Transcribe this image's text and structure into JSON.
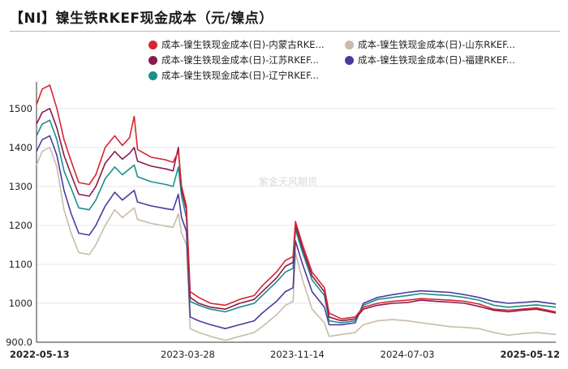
{
  "header": {
    "title": "【NI】镍生铁RKEF现金成本（元/镍点）"
  },
  "chart_data": {
    "type": "line",
    "title": "【NI】镍生铁RKEF现金成本（元/镍点）",
    "watermark": "紫金天风期货",
    "ylim": [
      900,
      1560
    ],
    "yticks": [
      "1500",
      "1400",
      "1300",
      "1200",
      "1100",
      "1000",
      "900.0"
    ],
    "x_ticks": [
      "2022-05-13",
      "2023-03-28",
      "2023-11-14",
      "2024-07-03",
      "2025-05-12"
    ],
    "grid": "horizontal",
    "legend_position": "top",
    "series": [
      {
        "name": "成本-镍生铁现金成本(日)-内蒙古RKE...",
        "color": "#d7262e",
        "points": [
          [
            "2022-05-13",
            1510
          ],
          [
            "2022-05-25",
            1550
          ],
          [
            "2022-06-10",
            1560
          ],
          [
            "2022-06-25",
            1500
          ],
          [
            "2022-07-10",
            1420
          ],
          [
            "2022-07-25",
            1365
          ],
          [
            "2022-08-10",
            1310
          ],
          [
            "2022-09-01",
            1305
          ],
          [
            "2022-09-15",
            1330
          ],
          [
            "2022-10-05",
            1400
          ],
          [
            "2022-10-25",
            1430
          ],
          [
            "2022-11-10",
            1405
          ],
          [
            "2022-11-25",
            1425
          ],
          [
            "2022-12-05",
            1480
          ],
          [
            "2022-12-12",
            1395
          ],
          [
            "2023-01-10",
            1375
          ],
          [
            "2023-02-10",
            1368
          ],
          [
            "2023-02-25",
            1362
          ],
          [
            "2023-03-08",
            1390
          ],
          [
            "2023-03-15",
            1300
          ],
          [
            "2023-03-25",
            1250
          ],
          [
            "2023-04-02",
            1030
          ],
          [
            "2023-04-20",
            1015
          ],
          [
            "2023-05-15",
            1000
          ],
          [
            "2023-06-15",
            995
          ],
          [
            "2023-07-15",
            1010
          ],
          [
            "2023-08-15",
            1020
          ],
          [
            "2023-09-01",
            1045
          ],
          [
            "2023-10-01",
            1080
          ],
          [
            "2023-10-20",
            1110
          ],
          [
            "2023-11-05",
            1120
          ],
          [
            "2023-11-10",
            1210
          ],
          [
            "2023-11-25",
            1150
          ],
          [
            "2023-12-15",
            1080
          ],
          [
            "2024-01-10",
            1040
          ],
          [
            "2024-01-20",
            975
          ],
          [
            "2024-02-15",
            960
          ],
          [
            "2024-03-15",
            965
          ],
          [
            "2024-04-01",
            990
          ],
          [
            "2024-05-01",
            1000
          ],
          [
            "2024-06-01",
            1005
          ],
          [
            "2024-07-03",
            1008
          ],
          [
            "2024-08-01",
            1012
          ],
          [
            "2024-09-01",
            1010
          ],
          [
            "2024-10-01",
            1008
          ],
          [
            "2024-11-01",
            1005
          ],
          [
            "2024-12-01",
            998
          ],
          [
            "2025-01-01",
            985
          ],
          [
            "2025-02-01",
            982
          ],
          [
            "2025-03-01",
            985
          ],
          [
            "2025-04-01",
            988
          ],
          [
            "2025-05-12",
            978
          ]
        ]
      },
      {
        "name": "成本-镍生铁现金成本(日)-江苏RKEF...",
        "color": "#8b1a4d",
        "points": [
          [
            "2022-05-13",
            1460
          ],
          [
            "2022-05-25",
            1490
          ],
          [
            "2022-06-10",
            1500
          ],
          [
            "2022-06-25",
            1450
          ],
          [
            "2022-07-10",
            1380
          ],
          [
            "2022-07-25",
            1330
          ],
          [
            "2022-08-10",
            1280
          ],
          [
            "2022-09-01",
            1275
          ],
          [
            "2022-09-15",
            1300
          ],
          [
            "2022-10-05",
            1360
          ],
          [
            "2022-10-25",
            1390
          ],
          [
            "2022-11-10",
            1370
          ],
          [
            "2022-11-25",
            1385
          ],
          [
            "2022-12-05",
            1400
          ],
          [
            "2022-12-12",
            1365
          ],
          [
            "2023-01-10",
            1352
          ],
          [
            "2023-02-10",
            1345
          ],
          [
            "2023-02-25",
            1340
          ],
          [
            "2023-03-08",
            1400
          ],
          [
            "2023-03-15",
            1290
          ],
          [
            "2023-03-25",
            1240
          ],
          [
            "2023-04-02",
            1015
          ],
          [
            "2023-04-20",
            1000
          ],
          [
            "2023-05-15",
            990
          ],
          [
            "2023-06-15",
            985
          ],
          [
            "2023-07-15",
            1000
          ],
          [
            "2023-08-15",
            1010
          ],
          [
            "2023-09-01",
            1030
          ],
          [
            "2023-10-01",
            1065
          ],
          [
            "2023-10-20",
            1095
          ],
          [
            "2023-11-05",
            1105
          ],
          [
            "2023-11-10",
            1200
          ],
          [
            "2023-11-25",
            1140
          ],
          [
            "2023-12-15",
            1070
          ],
          [
            "2024-01-10",
            1030
          ],
          [
            "2024-01-20",
            965
          ],
          [
            "2024-02-15",
            955
          ],
          [
            "2024-03-15",
            960
          ],
          [
            "2024-04-01",
            985
          ],
          [
            "2024-05-01",
            995
          ],
          [
            "2024-06-01",
            1000
          ],
          [
            "2024-07-03",
            1002
          ],
          [
            "2024-08-01",
            1008
          ],
          [
            "2024-09-01",
            1005
          ],
          [
            "2024-10-01",
            1003
          ],
          [
            "2024-11-01",
            1000
          ],
          [
            "2024-12-01",
            992
          ],
          [
            "2025-01-01",
            982
          ],
          [
            "2025-02-01",
            978
          ],
          [
            "2025-03-01",
            982
          ],
          [
            "2025-04-01",
            985
          ],
          [
            "2025-05-12",
            975
          ]
        ]
      },
      {
        "name": "成本-镍生铁现金成本(日)-辽宁RKEF...",
        "color": "#1a8f8c",
        "points": [
          [
            "2022-05-13",
            1430
          ],
          [
            "2022-05-25",
            1460
          ],
          [
            "2022-06-10",
            1470
          ],
          [
            "2022-06-25",
            1420
          ],
          [
            "2022-07-10",
            1340
          ],
          [
            "2022-07-25",
            1295
          ],
          [
            "2022-08-10",
            1245
          ],
          [
            "2022-09-01",
            1240
          ],
          [
            "2022-09-15",
            1265
          ],
          [
            "2022-10-05",
            1320
          ],
          [
            "2022-10-25",
            1350
          ],
          [
            "2022-11-10",
            1330
          ],
          [
            "2022-11-25",
            1345
          ],
          [
            "2022-12-05",
            1355
          ],
          [
            "2022-12-12",
            1325
          ],
          [
            "2023-01-10",
            1312
          ],
          [
            "2023-02-10",
            1305
          ],
          [
            "2023-02-25",
            1300
          ],
          [
            "2023-03-08",
            1350
          ],
          [
            "2023-03-15",
            1275
          ],
          [
            "2023-03-25",
            1220
          ],
          [
            "2023-04-02",
            1005
          ],
          [
            "2023-04-20",
            995
          ],
          [
            "2023-05-15",
            985
          ],
          [
            "2023-06-15",
            978
          ],
          [
            "2023-07-15",
            990
          ],
          [
            "2023-08-15",
            1000
          ],
          [
            "2023-09-01",
            1020
          ],
          [
            "2023-10-01",
            1055
          ],
          [
            "2023-10-20",
            1080
          ],
          [
            "2023-11-05",
            1090
          ],
          [
            "2023-11-10",
            1190
          ],
          [
            "2023-11-25",
            1130
          ],
          [
            "2023-12-15",
            1060
          ],
          [
            "2024-01-10",
            1020
          ],
          [
            "2024-01-20",
            955
          ],
          [
            "2024-02-15",
            950
          ],
          [
            "2024-03-15",
            955
          ],
          [
            "2024-04-01",
            995
          ],
          [
            "2024-05-01",
            1010
          ],
          [
            "2024-06-01",
            1015
          ],
          [
            "2024-07-03",
            1020
          ],
          [
            "2024-08-01",
            1025
          ],
          [
            "2024-09-01",
            1022
          ],
          [
            "2024-10-01",
            1020
          ],
          [
            "2024-11-01",
            1015
          ],
          [
            "2024-12-01",
            1008
          ],
          [
            "2025-01-01",
            995
          ],
          [
            "2025-02-01",
            990
          ],
          [
            "2025-03-01",
            993
          ],
          [
            "2025-04-01",
            996
          ],
          [
            "2025-05-12",
            990
          ]
        ]
      },
      {
        "name": "成本-镍生铁现金成本(日)-山东RKEF...",
        "color": "#c8bba8",
        "points": [
          [
            "2022-05-13",
            1355
          ],
          [
            "2022-05-25",
            1390
          ],
          [
            "2022-06-10",
            1400
          ],
          [
            "2022-06-25",
            1350
          ],
          [
            "2022-07-10",
            1240
          ],
          [
            "2022-07-25",
            1180
          ],
          [
            "2022-08-10",
            1130
          ],
          [
            "2022-09-01",
            1125
          ],
          [
            "2022-09-15",
            1150
          ],
          [
            "2022-10-05",
            1200
          ],
          [
            "2022-10-25",
            1240
          ],
          [
            "2022-11-10",
            1220
          ],
          [
            "2022-11-25",
            1235
          ],
          [
            "2022-12-05",
            1245
          ],
          [
            "2022-12-12",
            1215
          ],
          [
            "2023-01-10",
            1205
          ],
          [
            "2023-02-10",
            1198
          ],
          [
            "2023-02-25",
            1195
          ],
          [
            "2023-03-08",
            1230
          ],
          [
            "2023-03-15",
            1180
          ],
          [
            "2023-03-25",
            1150
          ],
          [
            "2023-04-02",
            935
          ],
          [
            "2023-04-20",
            925
          ],
          [
            "2023-05-15",
            915
          ],
          [
            "2023-06-15",
            905
          ],
          [
            "2023-07-15",
            915
          ],
          [
            "2023-08-15",
            925
          ],
          [
            "2023-09-01",
            940
          ],
          [
            "2023-10-01",
            970
          ],
          [
            "2023-10-20",
            995
          ],
          [
            "2023-11-05",
            1005
          ],
          [
            "2023-11-10",
            1130
          ],
          [
            "2023-11-25",
            1060
          ],
          [
            "2023-12-15",
            985
          ],
          [
            "2024-01-10",
            950
          ],
          [
            "2024-01-20",
            915
          ],
          [
            "2024-02-15",
            920
          ],
          [
            "2024-03-15",
            925
          ],
          [
            "2024-04-01",
            945
          ],
          [
            "2024-05-01",
            955
          ],
          [
            "2024-06-01",
            958
          ],
          [
            "2024-07-03",
            955
          ],
          [
            "2024-08-01",
            950
          ],
          [
            "2024-09-01",
            945
          ],
          [
            "2024-10-01",
            940
          ],
          [
            "2024-11-01",
            938
          ],
          [
            "2024-12-01",
            935
          ],
          [
            "2025-01-01",
            925
          ],
          [
            "2025-02-01",
            918
          ],
          [
            "2025-03-01",
            922
          ],
          [
            "2025-04-01",
            925
          ],
          [
            "2025-05-12",
            920
          ]
        ]
      },
      {
        "name": "成本-镍生铁现金成本(日)-福建RKEF...",
        "color": "#4b3a9e",
        "points": [
          [
            "2022-05-13",
            1390
          ],
          [
            "2022-05-25",
            1420
          ],
          [
            "2022-06-10",
            1430
          ],
          [
            "2022-06-25",
            1380
          ],
          [
            "2022-07-10",
            1290
          ],
          [
            "2022-07-25",
            1230
          ],
          [
            "2022-08-10",
            1180
          ],
          [
            "2022-09-01",
            1175
          ],
          [
            "2022-09-15",
            1200
          ],
          [
            "2022-10-05",
            1250
          ],
          [
            "2022-10-25",
            1285
          ],
          [
            "2022-11-10",
            1265
          ],
          [
            "2022-11-25",
            1280
          ],
          [
            "2022-12-05",
            1290
          ],
          [
            "2022-12-12",
            1260
          ],
          [
            "2023-01-10",
            1250
          ],
          [
            "2023-02-10",
            1243
          ],
          [
            "2023-02-25",
            1240
          ],
          [
            "2023-03-08",
            1280
          ],
          [
            "2023-03-15",
            1220
          ],
          [
            "2023-03-25",
            1185
          ],
          [
            "2023-04-02",
            965
          ],
          [
            "2023-04-20",
            955
          ],
          [
            "2023-05-15",
            945
          ],
          [
            "2023-06-15",
            935
          ],
          [
            "2023-07-15",
            945
          ],
          [
            "2023-08-15",
            955
          ],
          [
            "2023-09-01",
            975
          ],
          [
            "2023-10-01",
            1005
          ],
          [
            "2023-10-20",
            1030
          ],
          [
            "2023-11-05",
            1040
          ],
          [
            "2023-11-10",
            1160
          ],
          [
            "2023-11-25",
            1100
          ],
          [
            "2023-12-15",
            1030
          ],
          [
            "2024-01-10",
            990
          ],
          [
            "2024-01-20",
            945
          ],
          [
            "2024-02-15",
            945
          ],
          [
            "2024-03-15",
            950
          ],
          [
            "2024-04-01",
            1000
          ],
          [
            "2024-05-01",
            1015
          ],
          [
            "2024-06-01",
            1022
          ],
          [
            "2024-07-03",
            1028
          ],
          [
            "2024-08-01",
            1032
          ],
          [
            "2024-09-01",
            1030
          ],
          [
            "2024-10-01",
            1028
          ],
          [
            "2024-11-01",
            1022
          ],
          [
            "2024-12-01",
            1015
          ],
          [
            "2025-01-01",
            1005
          ],
          [
            "2025-02-01",
            1000
          ],
          [
            "2025-03-01",
            1002
          ],
          [
            "2025-04-01",
            1005
          ],
          [
            "2025-05-12",
            998
          ]
        ]
      }
    ]
  }
}
